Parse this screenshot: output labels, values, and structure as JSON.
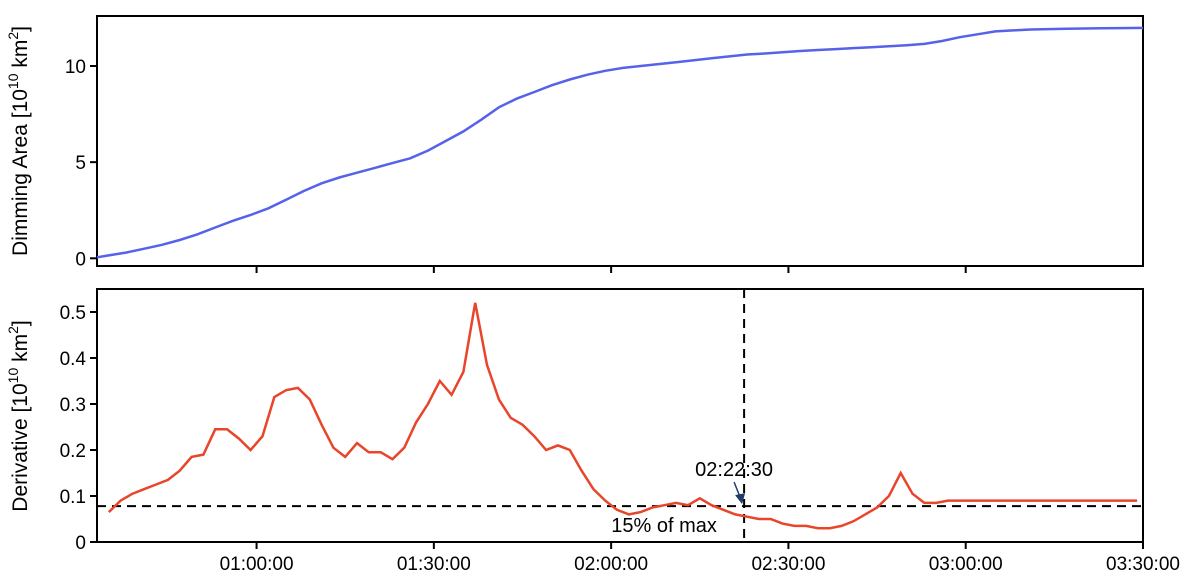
{
  "chart_data": [
    {
      "type": "line",
      "ylabel": "Dimming Area [10¹⁰ km²]",
      "ylabel_base": "Dimming Area [10",
      "ylabel_exp1": "10",
      "ylabel_mid": " km",
      "ylabel_exp2": "2",
      "ylabel_end": "]",
      "color": "#5762ea",
      "xlim_min": [
        33,
        210
      ],
      "ylim": [
        -0.4,
        12.6
      ],
      "yticks": [
        0,
        5,
        10
      ],
      "yticklabels": [
        "0",
        "5",
        "10"
      ],
      "xticks_min": [
        60,
        90,
        120,
        150,
        180
      ],
      "x_min": [
        33,
        35,
        38,
        41,
        44,
        47,
        50,
        53,
        56,
        59,
        62,
        65,
        68,
        71,
        74,
        77,
        80,
        83,
        86,
        89,
        92,
        95,
        98,
        101,
        104,
        107,
        110,
        113,
        116,
        119,
        122,
        125,
        128,
        131,
        134,
        137,
        140,
        143,
        146,
        149,
        152,
        155,
        158,
        161,
        164,
        167,
        170,
        173,
        176,
        179,
        182,
        185,
        188,
        191,
        194,
        197,
        200,
        203,
        206,
        210
      ],
      "values": [
        0.05,
        0.15,
        0.3,
        0.5,
        0.7,
        0.95,
        1.25,
        1.6,
        1.95,
        2.25,
        2.6,
        3.05,
        3.5,
        3.9,
        4.2,
        4.45,
        4.7,
        4.95,
        5.2,
        5.6,
        6.1,
        6.6,
        7.2,
        7.85,
        8.3,
        8.65,
        9.0,
        9.3,
        9.55,
        9.75,
        9.9,
        10.0,
        10.1,
        10.2,
        10.3,
        10.4,
        10.5,
        10.6,
        10.65,
        10.72,
        10.78,
        10.83,
        10.88,
        10.93,
        10.98,
        11.03,
        11.08,
        11.15,
        11.3,
        11.5,
        11.65,
        11.8,
        11.85,
        11.9,
        11.92,
        11.94,
        11.95,
        11.96,
        11.97,
        11.98
      ]
    },
    {
      "type": "line",
      "ylabel": "Derivative [10¹⁰ km²]",
      "ylabel_base": "Derivative [10",
      "ylabel_exp1": "10",
      "ylabel_mid": " km",
      "ylabel_exp2": "2",
      "ylabel_end": "]",
      "color": "#e8452a",
      "xlim_min": [
        33,
        210
      ],
      "ylim": [
        0.0,
        0.55
      ],
      "yticks": [
        0,
        0.1,
        0.2,
        0.3,
        0.4,
        0.5
      ],
      "yticklabels": [
        "0",
        "0.1",
        "0.2",
        "0.3",
        "0.4",
        "0.5"
      ],
      "xticks_min": [
        60,
        90,
        120,
        150,
        180,
        210
      ],
      "xticklabels": [
        "01:00:00",
        "01:30:00",
        "02:00:00",
        "02:30:00",
        "03:00:00",
        "03:30:00"
      ],
      "x_min": [
        35,
        37,
        39,
        41,
        43,
        45,
        47,
        49,
        51,
        53,
        55,
        57,
        59,
        61,
        63,
        65,
        67,
        69,
        71,
        73,
        75,
        77,
        79,
        81,
        83,
        85,
        87,
        89,
        91,
        93,
        95,
        97,
        99,
        101,
        103,
        105,
        107,
        109,
        111,
        113,
        115,
        117,
        119,
        121,
        123,
        125,
        127,
        129,
        131,
        133,
        135,
        137,
        139,
        141,
        143,
        145,
        147,
        149,
        151,
        153,
        155,
        157,
        159,
        161,
        163,
        165,
        167,
        169,
        171,
        173,
        175,
        177,
        179,
        181,
        183,
        185,
        187,
        189,
        191,
        193,
        195,
        197,
        199,
        201,
        203,
        205,
        207,
        209
      ],
      "values": [
        0.065,
        0.09,
        0.105,
        0.115,
        0.125,
        0.135,
        0.155,
        0.185,
        0.19,
        0.245,
        0.245,
        0.225,
        0.2,
        0.23,
        0.315,
        0.33,
        0.335,
        0.31,
        0.255,
        0.205,
        0.185,
        0.215,
        0.195,
        0.195,
        0.18,
        0.205,
        0.26,
        0.3,
        0.35,
        0.32,
        0.37,
        0.52,
        0.385,
        0.31,
        0.27,
        0.255,
        0.23,
        0.2,
        0.21,
        0.2,
        0.155,
        0.115,
        0.09,
        0.07,
        0.06,
        0.065,
        0.075,
        0.08,
        0.085,
        0.08,
        0.095,
        0.08,
        0.07,
        0.06,
        0.055,
        0.05,
        0.05,
        0.04,
        0.035,
        0.035,
        0.03,
        0.03,
        0.035,
        0.045,
        0.06,
        0.075,
        0.1,
        0.15,
        0.105,
        0.085,
        0.085,
        0.09,
        0.09,
        0.09,
        0.09,
        0.09,
        0.09,
        0.09,
        0.09,
        0.09,
        0.09,
        0.09,
        0.09,
        0.09,
        0.09,
        0.09,
        0.09,
        0.09
      ],
      "threshold": 0.078,
      "threshold_label": "15% of max",
      "marker_x_min": 142.5,
      "marker_label": "02:22:30"
    }
  ]
}
